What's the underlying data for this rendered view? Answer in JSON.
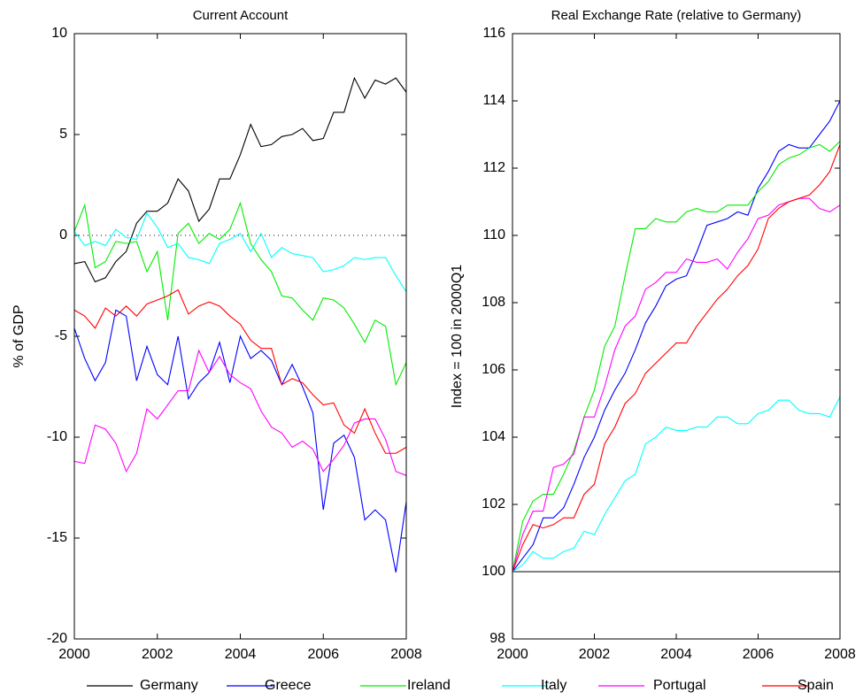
{
  "chart_data": [
    {
      "type": "line",
      "title": "Current Account",
      "y_label": "% of GDP",
      "x": [
        2000,
        2000.25,
        2000.5,
        2000.75,
        2001,
        2001.25,
        2001.5,
        2001.75,
        2002,
        2002.25,
        2002.5,
        2002.75,
        2003,
        2003.25,
        2003.5,
        2003.75,
        2004,
        2004.25,
        2004.5,
        2004.75,
        2005,
        2005.25,
        2005.5,
        2005.75,
        2006,
        2006.25,
        2006.5,
        2006.75,
        2007,
        2007.25,
        2007.5,
        2007.75,
        2008
      ],
      "xlim": [
        2000,
        2008
      ],
      "xticks": [
        2000,
        2002,
        2004,
        2006,
        2008
      ],
      "ylim": [
        -20,
        10
      ],
      "yticks": [
        -20,
        -15,
        -10,
        -5,
        0,
        5,
        10
      ],
      "zero_line": true,
      "series": [
        {
          "name": "Germany",
          "color": "#000000",
          "values": [
            -1.4,
            -1.3,
            -2.3,
            -2.1,
            -1.3,
            -0.8,
            0.6,
            1.2,
            1.2,
            1.6,
            2.8,
            2.2,
            0.7,
            1.3,
            2.8,
            2.8,
            4.0,
            5.5,
            4.4,
            4.5,
            4.9,
            5.0,
            5.3,
            4.7,
            4.8,
            6.1,
            6.1,
            7.8,
            6.8,
            7.7,
            7.5,
            7.8,
            7.1
          ]
        },
        {
          "name": "Greece",
          "color": "#0000ff",
          "values": [
            -4.6,
            -6.1,
            -7.2,
            -6.3,
            -3.7,
            -4.0,
            -7.2,
            -5.5,
            -6.9,
            -7.4,
            -5.0,
            -8.1,
            -7.3,
            -6.8,
            -5.3,
            -7.3,
            -5.0,
            -6.1,
            -5.7,
            -6.2,
            -7.4,
            -6.4,
            -7.5,
            -8.8,
            -13.6,
            -10.3,
            -9.9,
            -11.0,
            -14.1,
            -13.6,
            -14.1,
            -16.7,
            -13.2
          ]
        },
        {
          "name": "Ireland",
          "color": "#00ee00",
          "values": [
            0.2,
            1.5,
            -1.6,
            -1.3,
            -0.3,
            -0.4,
            -0.3,
            -1.8,
            -0.8,
            -4.2,
            0.1,
            0.6,
            -0.4,
            0.1,
            -0.2,
            0.3,
            1.6,
            -0.4,
            -1.2,
            -1.8,
            -3.0,
            -3.1,
            -3.7,
            -4.2,
            -3.1,
            -3.2,
            -3.6,
            -4.4,
            -5.3,
            -4.2,
            -4.5,
            -7.4,
            -6.3
          ]
        },
        {
          "name": "Italy",
          "color": "#00ffff",
          "values": [
            0.2,
            -0.5,
            -0.3,
            -0.5,
            0.3,
            -0.1,
            -0.2,
            1.1,
            0.4,
            -0.6,
            -0.4,
            -1.1,
            -1.2,
            -1.4,
            -0.4,
            -0.2,
            0.1,
            -0.8,
            0.1,
            -1.1,
            -0.6,
            -0.9,
            -1.0,
            -1.1,
            -1.8,
            -1.7,
            -1.5,
            -1.1,
            -1.2,
            -1.1,
            -1.1,
            -2.0,
            -2.8
          ]
        },
        {
          "name": "Portugal",
          "color": "#ff00ff",
          "values": [
            -11.2,
            -11.3,
            -9.4,
            -9.6,
            -10.3,
            -11.7,
            -10.8,
            -8.6,
            -9.1,
            -8.4,
            -7.7,
            -7.7,
            -5.7,
            -6.8,
            -6.0,
            -6.9,
            -7.3,
            -7.6,
            -8.7,
            -9.5,
            -9.8,
            -10.5,
            -10.2,
            -10.6,
            -11.7,
            -11.1,
            -10.4,
            -9.3,
            -9.1,
            -9.1,
            -10.1,
            -11.7,
            -11.9
          ]
        },
        {
          "name": "Spain",
          "color": "#ff0000",
          "values": [
            -3.7,
            -4.0,
            -4.6,
            -3.6,
            -4.0,
            -3.5,
            -4.0,
            -3.4,
            -3.2,
            -3.0,
            -2.7,
            -3.9,
            -3.5,
            -3.3,
            -3.5,
            -4.0,
            -4.4,
            -5.2,
            -5.6,
            -5.6,
            -7.4,
            -7.1,
            -7.3,
            -7.9,
            -8.4,
            -8.3,
            -9.4,
            -9.8,
            -8.6,
            -9.8,
            -10.8,
            -10.8,
            -10.5
          ]
        }
      ]
    },
    {
      "type": "line",
      "title": "Real Exchange Rate (relative to Germany)",
      "y_label": "Index = 100 in 2000Q1",
      "x": [
        2000,
        2000.25,
        2000.5,
        2000.75,
        2001,
        2001.25,
        2001.5,
        2001.75,
        2002,
        2002.25,
        2002.5,
        2002.75,
        2003,
        2003.25,
        2003.5,
        2003.75,
        2004,
        2004.25,
        2004.5,
        2004.75,
        2005,
        2005.25,
        2005.5,
        2005.75,
        2006,
        2006.25,
        2006.5,
        2006.75,
        2007,
        2007.25,
        2007.5,
        2007.75,
        2008
      ],
      "xlim": [
        2000,
        2008
      ],
      "xticks": [
        2000,
        2002,
        2004,
        2006,
        2008
      ],
      "ylim": [
        98,
        116
      ],
      "yticks": [
        98,
        100,
        102,
        104,
        106,
        108,
        110,
        112,
        114,
        116
      ],
      "zero_line": false,
      "series": [
        {
          "name": "Germany",
          "color": "#000000",
          "values": [
            100,
            100,
            100,
            100,
            100,
            100,
            100,
            100,
            100,
            100,
            100,
            100,
            100,
            100,
            100,
            100,
            100,
            100,
            100,
            100,
            100,
            100,
            100,
            100,
            100,
            100,
            100,
            100,
            100,
            100,
            100,
            100,
            100
          ]
        },
        {
          "name": "Greece",
          "color": "#0000ff",
          "values": [
            100,
            100.4,
            100.8,
            101.6,
            101.6,
            101.9,
            102.6,
            103.4,
            104.0,
            104.8,
            105.4,
            105.9,
            106.6,
            107.4,
            107.9,
            108.5,
            108.7,
            108.8,
            109.5,
            110.3,
            110.4,
            110.5,
            110.7,
            110.6,
            111.4,
            111.9,
            112.5,
            112.7,
            112.6,
            112.6,
            113.0,
            113.4,
            114.0
          ]
        },
        {
          "name": "Ireland",
          "color": "#00ee00",
          "values": [
            100,
            101.5,
            102.1,
            102.3,
            102.3,
            102.9,
            103.6,
            104.6,
            105.4,
            106.7,
            107.3,
            108.8,
            110.2,
            110.2,
            110.5,
            110.4,
            110.4,
            110.7,
            110.8,
            110.7,
            110.7,
            110.9,
            110.9,
            110.9,
            111.3,
            111.6,
            112.1,
            112.3,
            112.4,
            112.6,
            112.7,
            112.5,
            112.8
          ]
        },
        {
          "name": "Italy",
          "color": "#00ffff",
          "values": [
            100,
            100.2,
            100.6,
            100.4,
            100.4,
            100.6,
            100.7,
            101.2,
            101.1,
            101.7,
            102.2,
            102.7,
            102.9,
            103.8,
            104.0,
            104.3,
            104.2,
            104.2,
            104.3,
            104.3,
            104.6,
            104.6,
            104.4,
            104.4,
            104.7,
            104.8,
            105.1,
            105.1,
            104.8,
            104.7,
            104.7,
            104.6,
            105.2
          ]
        },
        {
          "name": "Portugal",
          "color": "#ff00ff",
          "values": [
            100,
            101.1,
            101.8,
            101.8,
            103.1,
            103.2,
            103.5,
            104.6,
            104.6,
            105.5,
            106.6,
            107.3,
            107.6,
            108.4,
            108.6,
            108.9,
            108.9,
            109.3,
            109.2,
            109.2,
            109.3,
            109.0,
            109.5,
            109.9,
            110.5,
            110.6,
            110.9,
            111.0,
            111.1,
            111.1,
            110.8,
            110.7,
            110.9
          ]
        },
        {
          "name": "Spain",
          "color": "#ff0000",
          "values": [
            100,
            100.8,
            101.4,
            101.3,
            101.4,
            101.6,
            101.6,
            102.3,
            102.6,
            103.8,
            104.3,
            105.0,
            105.3,
            105.9,
            106.2,
            106.5,
            106.8,
            106.8,
            107.3,
            107.7,
            108.1,
            108.4,
            108.8,
            109.1,
            109.6,
            110.5,
            110.8,
            111.0,
            111.1,
            111.2,
            111.5,
            111.9,
            112.7
          ]
        }
      ]
    }
  ]
}
